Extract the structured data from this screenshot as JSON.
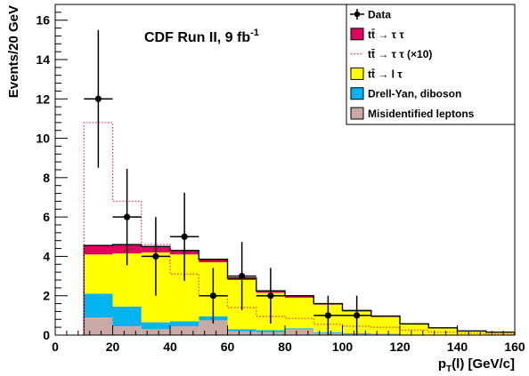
{
  "chart_data": {
    "type": "bar",
    "annotation": "CDF Run II, 9 fb",
    "annotation_sup": "-1",
    "xlabel": "p",
    "xlabel_sub": "T",
    "xlabel_tail": "(l)  [GeV/c]",
    "ylabel": "Events/20 GeV",
    "xlim": [
      0,
      160
    ],
    "ylim": [
      0,
      16.8
    ],
    "x_ticks": [
      0,
      20,
      40,
      60,
      80,
      100,
      120,
      140,
      160
    ],
    "y_ticks": [
      0,
      2,
      4,
      6,
      8,
      10,
      12,
      14,
      16
    ],
    "x_tick_labels": [
      "0",
      "20",
      "40",
      "60",
      "80",
      "100",
      "120",
      "140",
      "160"
    ],
    "y_tick_labels": [
      "0",
      "2",
      "4",
      "6",
      "8",
      "10",
      "12",
      "14",
      "16"
    ],
    "bin_edges": [
      10,
      20,
      30,
      40,
      50,
      60,
      70,
      80,
      90,
      100,
      110,
      120,
      130,
      140,
      150,
      160
    ],
    "stack_series": [
      {
        "key": "misid",
        "color": "#c8a9a5",
        "values": [
          0.9,
          0.45,
          0.3,
          0.45,
          0.75,
          0.2,
          0.15,
          0.3,
          0.1,
          0.05,
          0.05,
          0.0,
          0.0,
          0.0,
          0.0
        ]
      },
      {
        "key": "dy",
        "color": "#00b4ef",
        "values": [
          1.2,
          1.0,
          0.35,
          0.25,
          0.2,
          0.1,
          0.1,
          0.05,
          0.05,
          0.05,
          0.02,
          0.0,
          0.0,
          0.0,
          0.0
        ]
      },
      {
        "key": "ltau",
        "color": "#ffff00",
        "values": [
          2.0,
          2.7,
          3.55,
          3.4,
          2.75,
          2.5,
          1.9,
          1.55,
          1.4,
          1.1,
          0.85,
          0.55,
          0.35,
          0.2,
          0.15
        ]
      },
      {
        "key": "tautau",
        "color": "#e2005f",
        "values": [
          0.45,
          0.45,
          0.3,
          0.2,
          0.15,
          0.1,
          0.1,
          0.1,
          0.05,
          0.05,
          0.05,
          0.02,
          0.02,
          0.01,
          0.0
        ]
      }
    ],
    "tautau_x10": {
      "color": "#ff3366",
      "values": [
        10.8,
        6.8,
        4.6,
        3.1,
        2.0,
        1.4,
        0.95,
        0.85,
        0.55,
        0.45,
        0.4,
        0.25,
        0.15,
        0.1,
        0.05
      ]
    },
    "data_points": [
      {
        "x": 15,
        "y": 12,
        "yerr": 3.5
      },
      {
        "x": 25,
        "y": 6,
        "yerr": 2.45
      },
      {
        "x": 35,
        "y": 4,
        "yerr": 2.0
      },
      {
        "x": 45,
        "y": 5,
        "yerr": 2.24
      },
      {
        "x": 55,
        "y": 2,
        "yerr": 1.41
      },
      {
        "x": 65,
        "y": 3,
        "yerr": 1.73
      },
      {
        "x": 75,
        "y": 2,
        "yerr": 1.41
      },
      {
        "x": 95,
        "y": 1,
        "yerr": 1.0
      },
      {
        "x": 105,
        "y": 1,
        "yerr": 1.0
      }
    ],
    "legend": {
      "placement": "top-right",
      "entries": [
        {
          "key": "data",
          "style": "marker",
          "color": "#000000",
          "label": "Data"
        },
        {
          "key": "tautau",
          "style": "box",
          "color": "#e2005f",
          "label": "tt̄ → τ τ"
        },
        {
          "key": "tautau_x10",
          "style": "dotted",
          "color": "#ff3366",
          "label": "tt̄ → τ τ (×10)"
        },
        {
          "key": "ltau",
          "style": "box",
          "color": "#ffff00",
          "label": "tt̄ → l τ"
        },
        {
          "key": "dy",
          "style": "box",
          "color": "#00b4ef",
          "label": "Drell-Yan, diboson"
        },
        {
          "key": "misid",
          "style": "box",
          "color": "#c8a9a5",
          "label": "Misidentified leptons"
        }
      ]
    }
  }
}
